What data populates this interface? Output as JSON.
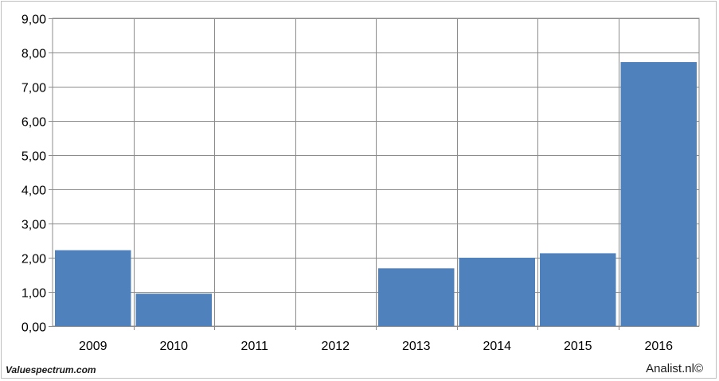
{
  "chart_data": {
    "type": "bar",
    "categories": [
      "2009",
      "2010",
      "2011",
      "2012",
      "2013",
      "2014",
      "2015",
      "2016"
    ],
    "values": [
      2.22,
      0.95,
      0,
      0,
      1.69,
      2.0,
      2.13,
      7.72
    ],
    "ylim": [
      0,
      9
    ],
    "y_ticks": [
      "0,00",
      "1,00",
      "2,00",
      "3,00",
      "4,00",
      "5,00",
      "6,00",
      "7,00",
      "8,00",
      "9,00"
    ],
    "grid": true,
    "bar_color": "#4f81bd"
  },
  "footer": {
    "source_left": "Valuespectrum.com",
    "source_right": "Analist.nl©"
  }
}
